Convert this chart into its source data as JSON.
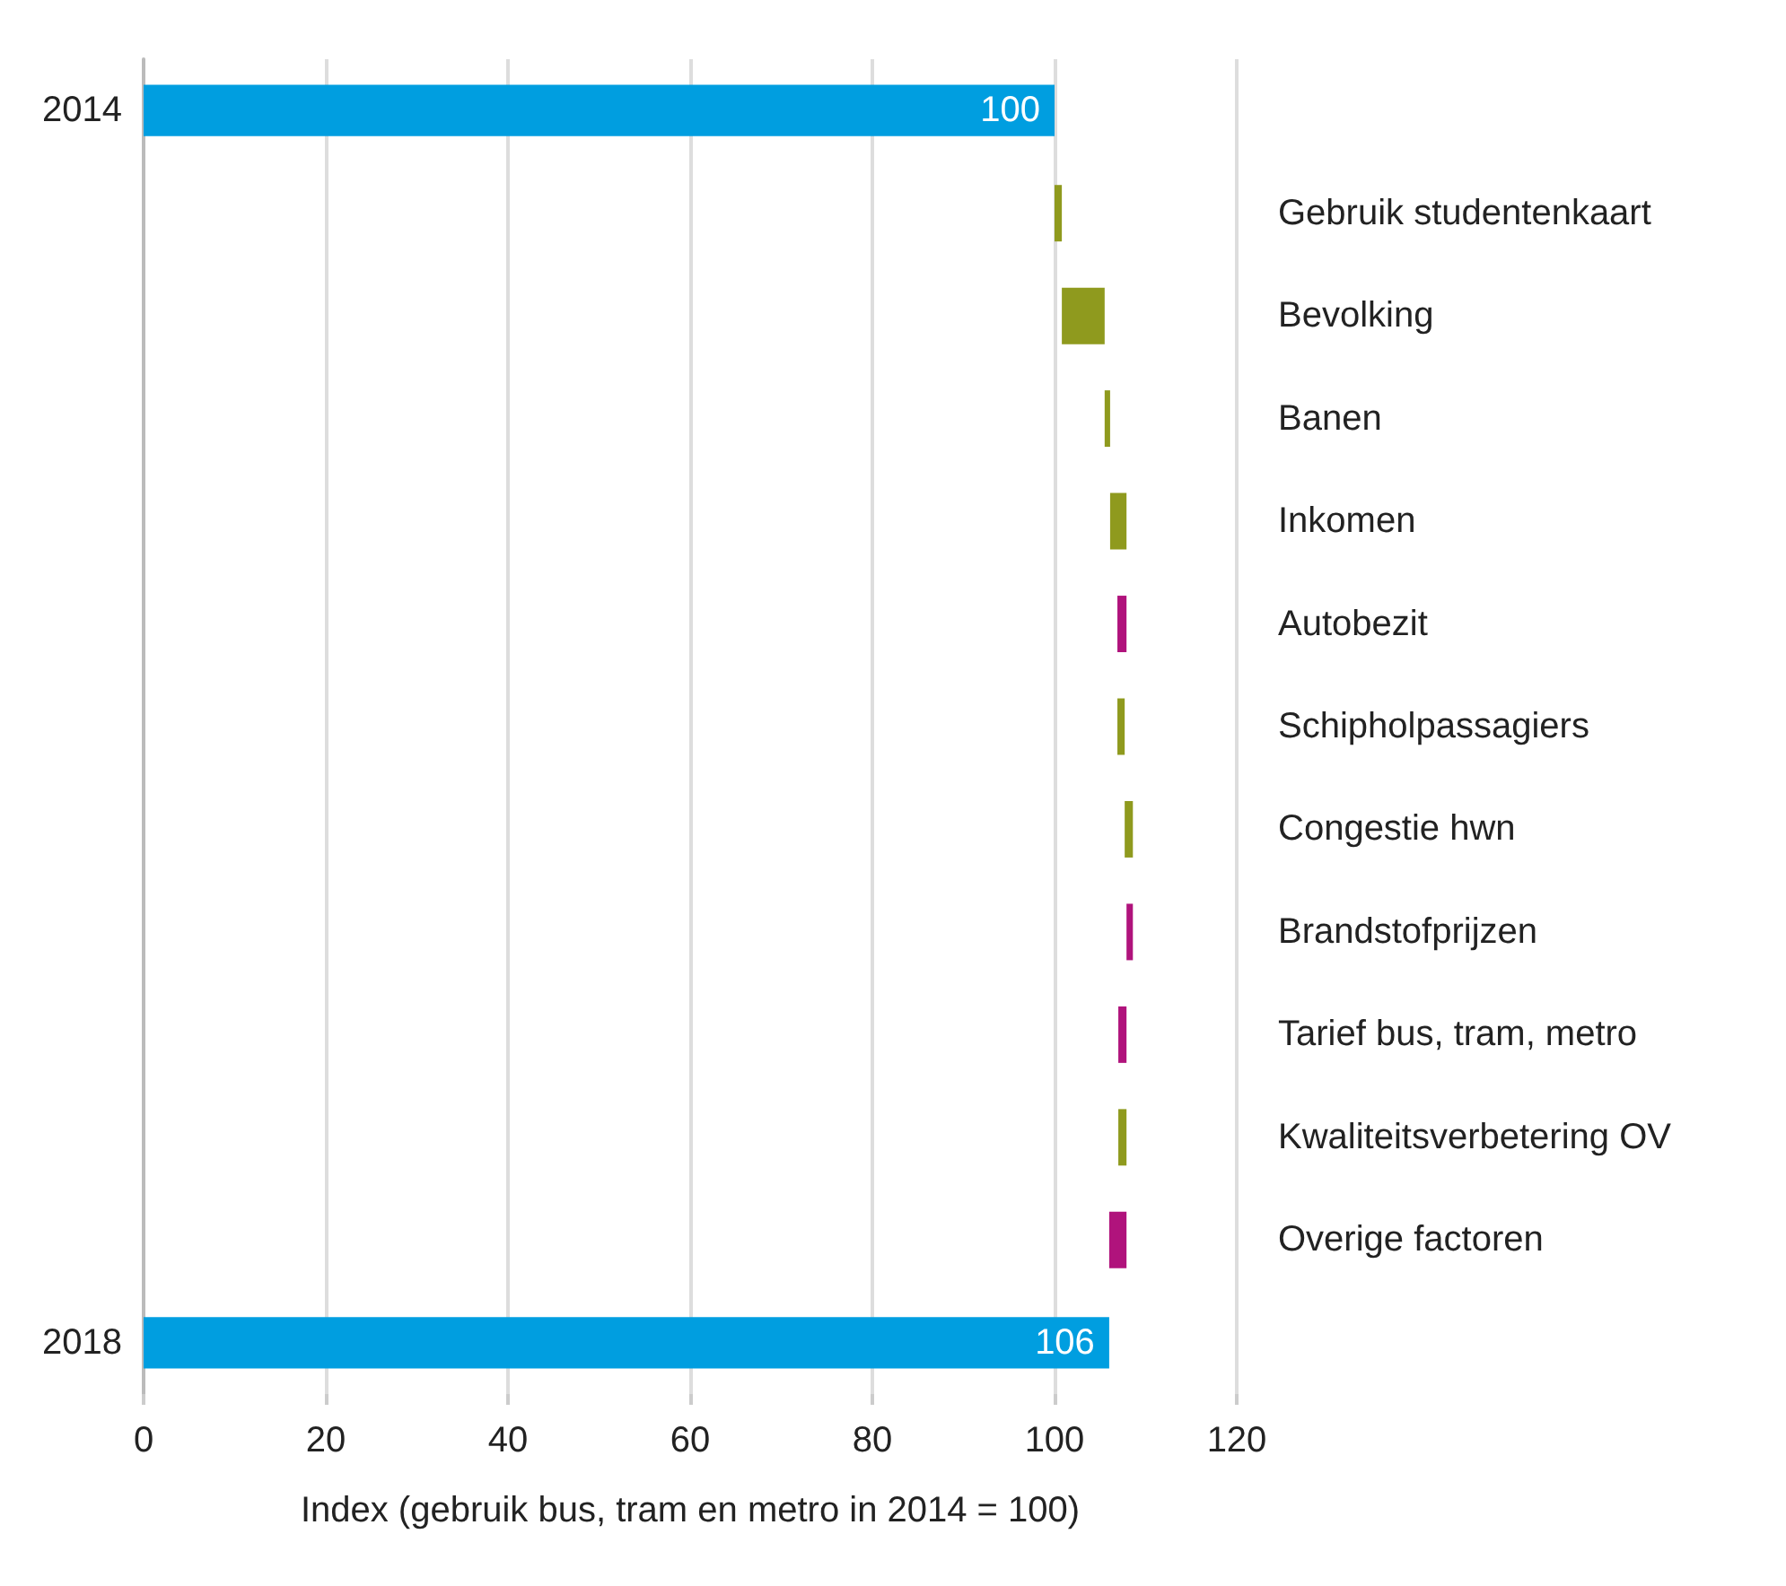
{
  "chart_data": {
    "type": "bar",
    "orientation": "horizontal",
    "xlabel": "Index (gebruik bus, tram en metro in 2014 = 100)",
    "categories": [
      "2014",
      "Gebruik studentenkaart",
      "Bevolking",
      "Banen",
      "Inkomen",
      "Autobezit",
      "Schipholpassagiers",
      "Congestie hwn",
      "Brandstofprijzen",
      "Tarief bus, tram, metro",
      "Kwaliteitsverbetering OV",
      "Overige factoren",
      "2018"
    ],
    "values": [
      100,
      0.8,
      4.7,
      0.6,
      1.8,
      -1.0,
      0.8,
      0.9,
      -0.7,
      -0.9,
      0.9,
      -1.9,
      106
    ],
    "base": [
      0,
      100,
      100.8,
      105.5,
      106.1,
      107.9,
      106.9,
      107.7,
      108.6,
      107.9,
      107.0,
      107.9,
      0
    ],
    "colors": [
      "#009ee0",
      "#8f9a1e",
      "#8f9a1e",
      "#8f9a1e",
      "#8f9a1e",
      "#b0137c",
      "#8f9a1e",
      "#8f9a1e",
      "#b0137c",
      "#b0137c",
      "#8f9a1e",
      "#b0137c",
      "#009ee0"
    ],
    "value_labels": [
      "100",
      null,
      null,
      null,
      null,
      null,
      null,
      null,
      null,
      null,
      null,
      null,
      "106"
    ],
    "xlim": [
      0,
      120
    ],
    "xticks": [
      0,
      20,
      40,
      60,
      80,
      100,
      120
    ],
    "grid": "x"
  }
}
